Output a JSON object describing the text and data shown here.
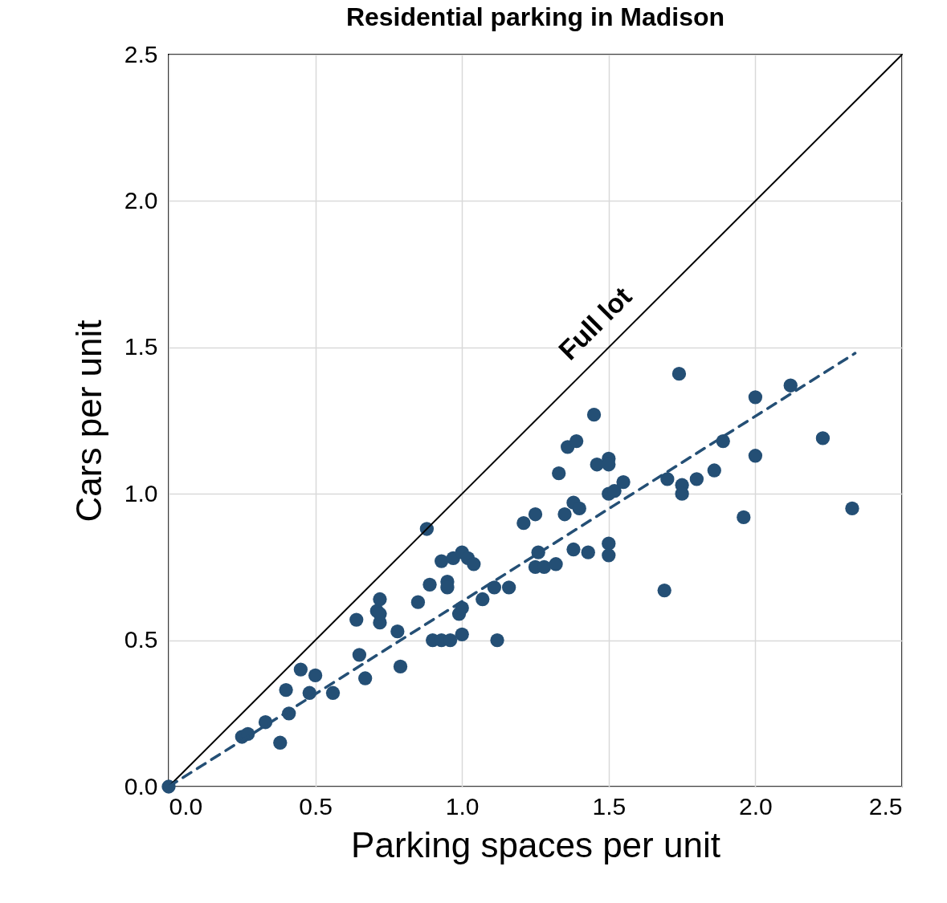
{
  "chart_data": {
    "type": "scatter",
    "title": "Residential parking in Madison",
    "xlabel": "Parking spaces per unit",
    "ylabel": "Cars per unit",
    "xlim": [
      0,
      2.5
    ],
    "ylim": [
      0,
      2.5
    ],
    "xticks": [
      {
        "value": 0,
        "label": "0.0"
      },
      {
        "value": 0.5,
        "label": "0.5"
      },
      {
        "value": 1,
        "label": "1.0"
      },
      {
        "value": 1.5,
        "label": "1.5"
      },
      {
        "value": 2,
        "label": "2.0"
      },
      {
        "value": 2.5,
        "label": "2.5"
      }
    ],
    "yticks": [
      {
        "value": 0,
        "label": "0.0"
      },
      {
        "value": 0.5,
        "label": "0.5"
      },
      {
        "value": 1,
        "label": "1.0"
      },
      {
        "value": 1.5,
        "label": "1.5"
      },
      {
        "value": 2,
        "label": "2.0"
      },
      {
        "value": 2.5,
        "label": "2.5"
      }
    ],
    "grid": true,
    "annotations": [
      "Full lot"
    ],
    "series": [
      {
        "marker": "circle",
        "color": "#244f75",
        "x": [
          0,
          0.25,
          0.27,
          0.33,
          0.38,
          0.41,
          0.4,
          0.45,
          0.48,
          0.5,
          0.56,
          0.64,
          0.65,
          0.67,
          0.71,
          0.72,
          0.72,
          0.72,
          0.78,
          0.79,
          0.85,
          0.88,
          0.89,
          0.9,
          0.93,
          0.93,
          0.95,
          0.95,
          0.96,
          0.97,
          1.0,
          1.0,
          0.99,
          1.0,
          1.02,
          1.04,
          1.07,
          1.11,
          1.12,
          1.16,
          1.21,
          1.25,
          1.25,
          1.26,
          1.28,
          1.32,
          1.33,
          1.35,
          1.36,
          1.38,
          1.38,
          1.39,
          1.4,
          1.43,
          1.45,
          1.46,
          1.5,
          1.5,
          1.5,
          1.5,
          1.5,
          1.52,
          1.55,
          1.7,
          1.69,
          1.74,
          1.75,
          1.75,
          1.8,
          1.86,
          1.89,
          1.96,
          2.0,
          2.0,
          2.12,
          2.23,
          2.33
        ],
        "values": [
          0,
          0.17,
          0.18,
          0.22,
          0.15,
          0.25,
          0.33,
          0.4,
          0.32,
          0.38,
          0.32,
          0.57,
          0.45,
          0.37,
          0.6,
          0.64,
          0.56,
          0.59,
          0.53,
          0.41,
          0.63,
          0.88,
          0.69,
          0.5,
          0.5,
          0.77,
          0.7,
          0.68,
          0.5,
          0.78,
          0.8,
          0.52,
          0.59,
          0.61,
          0.78,
          0.76,
          0.64,
          0.68,
          0.5,
          0.68,
          0.9,
          0.93,
          0.75,
          0.8,
          0.75,
          0.76,
          1.07,
          0.93,
          1.16,
          0.97,
          0.81,
          1.18,
          0.95,
          0.8,
          1.27,
          1.1,
          1.12,
          1.1,
          1.0,
          0.83,
          0.79,
          1.01,
          1.04,
          1.05,
          0.67,
          1.41,
          1.03,
          1.0,
          1.05,
          1.08,
          1.18,
          0.92,
          1.33,
          1.13,
          1.37,
          1.19,
          0.95
        ]
      },
      {
        "type": "line",
        "color": "#000000",
        "line_style": "solid",
        "x": [
          0,
          2.5
        ],
        "values": [
          0,
          2.5
        ]
      },
      {
        "type": "line",
        "color": "#244f75",
        "line_style": "dashed",
        "x": [
          0,
          2.34
        ],
        "values": [
          0,
          1.48
        ]
      }
    ]
  }
}
